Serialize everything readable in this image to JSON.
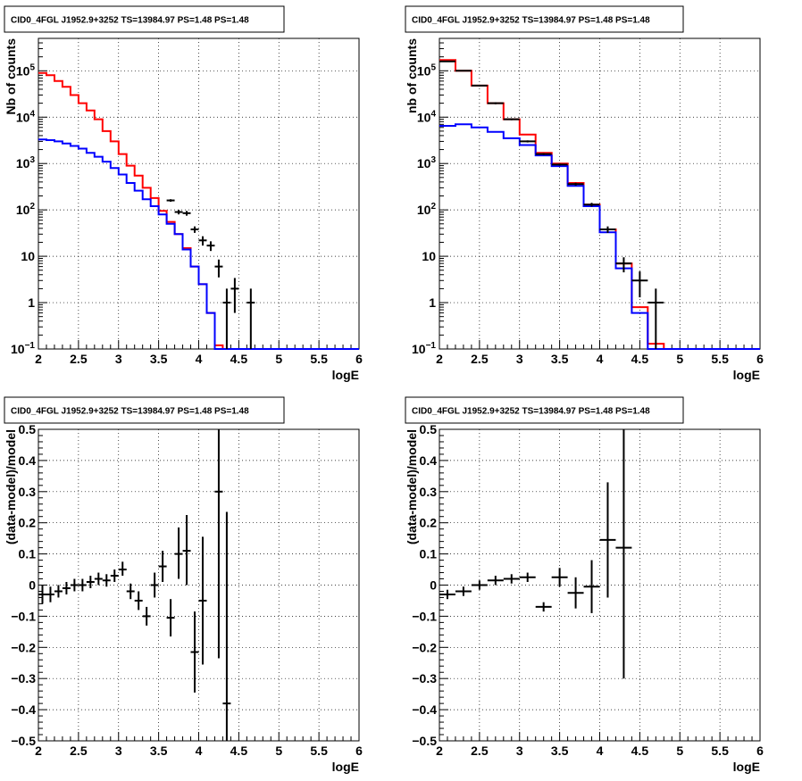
{
  "chart_data": [
    {
      "type": "step-histogram",
      "title": "CID0_4FGL J1952.9+3252 TS=13984.97 PS=1.48 PS=1.48",
      "xlabel": "logE",
      "ylabel": "Nb of counts",
      "xlim": [
        2,
        6
      ],
      "ylim": [
        0.1,
        500000
      ],
      "yscale": "log",
      "grid": true,
      "xticks": [
        "2",
        "2.5",
        "3",
        "3.5",
        "4",
        "4.5",
        "5",
        "5.5",
        "6"
      ],
      "yticks": [
        {
          "v": 0.1,
          "label": "10",
          "sup": "−1"
        },
        {
          "v": 1,
          "label": "1",
          "sup": ""
        },
        {
          "v": 10,
          "label": "10",
          "sup": ""
        },
        {
          "v": 100,
          "label": "10",
          "sup": "2"
        },
        {
          "v": 1000,
          "label": "10",
          "sup": "3"
        },
        {
          "v": 10000,
          "label": "10",
          "sup": "4"
        },
        {
          "v": 100000,
          "label": "10",
          "sup": "5"
        }
      ],
      "bin_width": 0.1,
      "series": [
        {
          "color": "#ff0000",
          "edges_start": 2,
          "values": [
            90000,
            80000,
            60000,
            45000,
            30000,
            20000,
            14000,
            9000,
            5000,
            3000,
            1600,
            900,
            550,
            300,
            180,
            95,
            55,
            30,
            15,
            6,
            2.5,
            0.6,
            0.12,
            0.1,
            0.1,
            0.1,
            0.1,
            0.1,
            0.1,
            0.1,
            0.1,
            0.1,
            0.1,
            0.1,
            0.1,
            0.1,
            0.1,
            0.1,
            0.1,
            0.1
          ]
        },
        {
          "color": "#0000ff",
          "edges_start": 2,
          "values": [
            3300,
            3200,
            3000,
            2700,
            2400,
            2100,
            1700,
            1400,
            1100,
            800,
            580,
            380,
            260,
            170,
            120,
            80,
            50,
            30,
            14,
            6,
            2.5,
            0.6,
            0.1,
            0.1,
            0.1,
            0.1,
            0.1,
            0.1,
            0.1,
            0.1,
            0.1,
            0.1,
            0.1,
            0.1,
            0.1,
            0.1,
            0.1,
            0.1,
            0.1,
            0.1
          ]
        }
      ],
      "points": [
        {
          "x": 3.65,
          "y": 160,
          "xerr": 0.05,
          "ylo": 150,
          "yhi": 170
        },
        {
          "x": 3.75,
          "y": 90,
          "xerr": 0.05,
          "ylo": 80,
          "yhi": 100
        },
        {
          "x": 3.85,
          "y": 85,
          "xerr": 0.05,
          "ylo": 75,
          "yhi": 95
        },
        {
          "x": 3.95,
          "y": 38,
          "xerr": 0.05,
          "ylo": 32,
          "yhi": 44
        },
        {
          "x": 4.05,
          "y": 22,
          "xerr": 0.05,
          "ylo": 17,
          "yhi": 27
        },
        {
          "x": 4.15,
          "y": 17,
          "xerr": 0.05,
          "ylo": 13,
          "yhi": 21
        },
        {
          "x": 4.25,
          "y": 6,
          "xerr": 0.05,
          "ylo": 3.5,
          "yhi": 8.5
        },
        {
          "x": 4.35,
          "y": 1,
          "xerr": 0.05,
          "ylo": 0.1,
          "yhi": 2
        },
        {
          "x": 4.45,
          "y": 2,
          "xerr": 0.05,
          "ylo": 0.6,
          "yhi": 3.4
        },
        {
          "x": 4.65,
          "y": 1,
          "xerr": 0.05,
          "ylo": 0.1,
          "yhi": 2
        }
      ]
    },
    {
      "type": "step-histogram",
      "title": "CID0_4FGL J1952.9+3252 TS=13984.97 PS=1.48 PS=1.48",
      "xlabel": "logE",
      "ylabel": "nb of counts",
      "xlim": [
        2,
        6
      ],
      "ylim": [
        0.1,
        500000
      ],
      "yscale": "log",
      "grid": true,
      "xticks": [
        "2",
        "2.5",
        "3",
        "3.5",
        "4",
        "4.5",
        "5",
        "5.5",
        "6"
      ],
      "yticks": [
        {
          "v": 0.1,
          "label": "10",
          "sup": "−1"
        },
        {
          "v": 1,
          "label": "1",
          "sup": ""
        },
        {
          "v": 10,
          "label": "10",
          "sup": ""
        },
        {
          "v": 100,
          "label": "10",
          "sup": "2"
        },
        {
          "v": 1000,
          "label": "10",
          "sup": "3"
        },
        {
          "v": 10000,
          "label": "10",
          "sup": "4"
        },
        {
          "v": 100000,
          "label": "10",
          "sup": "5"
        }
      ],
      "bin_width": 0.2,
      "series": [
        {
          "color": "#ff0000",
          "edges_start": 2,
          "values": [
            170000,
            100000,
            48000,
            20000,
            9000,
            4200,
            1700,
            1000,
            380,
            130,
            38,
            7,
            0.8,
            0.13,
            0.1,
            0.1,
            0.1,
            0.1,
            0.1,
            0.1
          ]
        },
        {
          "color": "#0000ff",
          "edges_start": 2,
          "values": [
            6500,
            7000,
            6000,
            4800,
            3500,
            2500,
            1500,
            880,
            330,
            120,
            33,
            5.5,
            0.6,
            0.1,
            0.1,
            0.1,
            0.1,
            0.1,
            0.1,
            0.1
          ]
        }
      ],
      "points": [
        {
          "x": 2.1,
          "y": 160000,
          "xerr": 0.1,
          "ylo": 155000,
          "yhi": 165000
        },
        {
          "x": 2.3,
          "y": 100000,
          "xerr": 0.1,
          "ylo": 97000,
          "yhi": 103000
        },
        {
          "x": 2.5,
          "y": 48000,
          "xerr": 0.1,
          "ylo": 46000,
          "yhi": 50000
        },
        {
          "x": 2.7,
          "y": 20000,
          "xerr": 0.1,
          "ylo": 19000,
          "yhi": 21000
        },
        {
          "x": 2.9,
          "y": 9000,
          "xerr": 0.1,
          "ylo": 8600,
          "yhi": 9400
        },
        {
          "x": 3.1,
          "y": 3000,
          "xerr": 0.1,
          "ylo": 2850,
          "yhi": 3150
        },
        {
          "x": 3.3,
          "y": 1600,
          "xerr": 0.1,
          "ylo": 1520,
          "yhi": 1680
        },
        {
          "x": 3.5,
          "y": 950,
          "xerr": 0.1,
          "ylo": 900,
          "yhi": 1000
        },
        {
          "x": 3.7,
          "y": 360,
          "xerr": 0.1,
          "ylo": 335,
          "yhi": 385
        },
        {
          "x": 3.9,
          "y": 130,
          "xerr": 0.1,
          "ylo": 118,
          "yhi": 142
        },
        {
          "x": 4.1,
          "y": 38,
          "xerr": 0.1,
          "ylo": 32,
          "yhi": 44
        },
        {
          "x": 4.3,
          "y": 7,
          "xerr": 0.1,
          "ylo": 4.5,
          "yhi": 9.5
        },
        {
          "x": 4.5,
          "y": 3,
          "xerr": 0.1,
          "ylo": 1.3,
          "yhi": 4.7
        },
        {
          "x": 4.7,
          "y": 1,
          "xerr": 0.1,
          "ylo": 0.1,
          "yhi": 2
        }
      ]
    },
    {
      "type": "scatter-errorbars",
      "title": "CID0_4FGL J1952.9+3252 TS=13984.97 PS=1.48 PS=1.48",
      "xlabel": "logE",
      "ylabel": "(data-model)/model",
      "xlim": [
        2,
        6
      ],
      "ylim": [
        -0.5,
        0.5
      ],
      "yscale": "linear",
      "grid": true,
      "xticks": [
        "2",
        "2.5",
        "3",
        "3.5",
        "4",
        "4.5",
        "5",
        "5.5",
        "6"
      ],
      "yticks": [
        "−0.5",
        "−0.4",
        "−0.3",
        "−0.2",
        "−0.1",
        "0",
        "0.1",
        "0.2",
        "0.3",
        "0.4",
        "0.5"
      ],
      "points": [
        {
          "x": 2.05,
          "y": -0.03,
          "xerr": 0.05,
          "ylo": -0.06,
          "yhi": 0.0
        },
        {
          "x": 2.15,
          "y": -0.03,
          "xerr": 0.05,
          "ylo": -0.055,
          "yhi": -0.005
        },
        {
          "x": 2.25,
          "y": -0.02,
          "xerr": 0.05,
          "ylo": -0.04,
          "yhi": 0.0
        },
        {
          "x": 2.35,
          "y": -0.01,
          "xerr": 0.05,
          "ylo": -0.03,
          "yhi": 0.01
        },
        {
          "x": 2.45,
          "y": 0.0,
          "xerr": 0.05,
          "ylo": -0.02,
          "yhi": 0.02
        },
        {
          "x": 2.55,
          "y": 0.0,
          "xerr": 0.05,
          "ylo": -0.02,
          "yhi": 0.02
        },
        {
          "x": 2.65,
          "y": 0.01,
          "xerr": 0.05,
          "ylo": -0.01,
          "yhi": 0.03
        },
        {
          "x": 2.75,
          "y": 0.02,
          "xerr": 0.05,
          "ylo": 0.0,
          "yhi": 0.04
        },
        {
          "x": 2.85,
          "y": 0.015,
          "xerr": 0.05,
          "ylo": -0.005,
          "yhi": 0.035
        },
        {
          "x": 2.95,
          "y": 0.03,
          "xerr": 0.05,
          "ylo": 0.01,
          "yhi": 0.05
        },
        {
          "x": 3.05,
          "y": 0.05,
          "xerr": 0.05,
          "ylo": 0.03,
          "yhi": 0.075
        },
        {
          "x": 3.15,
          "y": -0.02,
          "xerr": 0.05,
          "ylo": -0.045,
          "yhi": 0.005
        },
        {
          "x": 3.25,
          "y": -0.05,
          "xerr": 0.05,
          "ylo": -0.08,
          "yhi": -0.02
        },
        {
          "x": 3.35,
          "y": -0.1,
          "xerr": 0.05,
          "ylo": -0.13,
          "yhi": -0.07
        },
        {
          "x": 3.45,
          "y": 0.0,
          "xerr": 0.05,
          "ylo": -0.04,
          "yhi": 0.04
        },
        {
          "x": 3.55,
          "y": 0.06,
          "xerr": 0.05,
          "ylo": 0.01,
          "yhi": 0.11
        },
        {
          "x": 3.65,
          "y": -0.105,
          "xerr": 0.05,
          "ylo": -0.165,
          "yhi": -0.045
        },
        {
          "x": 3.75,
          "y": 0.1,
          "xerr": 0.05,
          "ylo": 0.02,
          "yhi": 0.185
        },
        {
          "x": 3.85,
          "y": 0.11,
          "xerr": 0.05,
          "ylo": 0.0,
          "yhi": 0.225
        },
        {
          "x": 3.95,
          "y": -0.215,
          "xerr": 0.05,
          "ylo": -0.345,
          "yhi": -0.085
        },
        {
          "x": 4.05,
          "y": -0.05,
          "xerr": 0.05,
          "ylo": -0.255,
          "yhi": 0.155
        },
        {
          "x": 4.25,
          "y": 0.3,
          "xerr": 0.05,
          "ylo": -0.235,
          "yhi": 0.5
        },
        {
          "x": 4.35,
          "y": -0.38,
          "xerr": 0.05,
          "ylo": -0.5,
          "yhi": 0.235
        }
      ]
    },
    {
      "type": "scatter-errorbars",
      "title": "CID0_4FGL J1952.9+3252 TS=13984.97 PS=1.48 PS=1.48",
      "xlabel": "logE",
      "ylabel": "(data-model)/model",
      "xlim": [
        2,
        6
      ],
      "ylim": [
        -0.5,
        0.5
      ],
      "yscale": "linear",
      "grid": true,
      "xticks": [
        "2",
        "2.5",
        "3",
        "3.5",
        "4",
        "4.5",
        "5",
        "5.5",
        "6"
      ],
      "yticks": [
        "−0.5",
        "−0.4",
        "−0.3",
        "−0.2",
        "−0.1",
        "0",
        "0.1",
        "0.2",
        "0.3",
        "0.4",
        "0.5"
      ],
      "points": [
        {
          "x": 2.1,
          "y": -0.03,
          "xerr": 0.1,
          "ylo": -0.045,
          "yhi": -0.015
        },
        {
          "x": 2.3,
          "y": -0.02,
          "xerr": 0.1,
          "ylo": -0.035,
          "yhi": -0.005
        },
        {
          "x": 2.5,
          "y": 0.0,
          "xerr": 0.1,
          "ylo": -0.015,
          "yhi": 0.015
        },
        {
          "x": 2.7,
          "y": 0.015,
          "xerr": 0.1,
          "ylo": 0.0,
          "yhi": 0.03
        },
        {
          "x": 2.9,
          "y": 0.02,
          "xerr": 0.1,
          "ylo": 0.005,
          "yhi": 0.035
        },
        {
          "x": 3.1,
          "y": 0.025,
          "xerr": 0.1,
          "ylo": 0.01,
          "yhi": 0.04
        },
        {
          "x": 3.3,
          "y": -0.07,
          "xerr": 0.1,
          "ylo": -0.085,
          "yhi": -0.055
        },
        {
          "x": 3.5,
          "y": 0.025,
          "xerr": 0.1,
          "ylo": -0.005,
          "yhi": 0.055
        },
        {
          "x": 3.7,
          "y": -0.025,
          "xerr": 0.1,
          "ylo": -0.075,
          "yhi": 0.025
        },
        {
          "x": 3.9,
          "y": -0.005,
          "xerr": 0.1,
          "ylo": -0.09,
          "yhi": 0.08
        },
        {
          "x": 4.1,
          "y": 0.145,
          "xerr": 0.1,
          "ylo": -0.04,
          "yhi": 0.33
        },
        {
          "x": 4.3,
          "y": 0.12,
          "xerr": 0.1,
          "ylo": -0.3,
          "yhi": 0.5
        }
      ]
    }
  ]
}
